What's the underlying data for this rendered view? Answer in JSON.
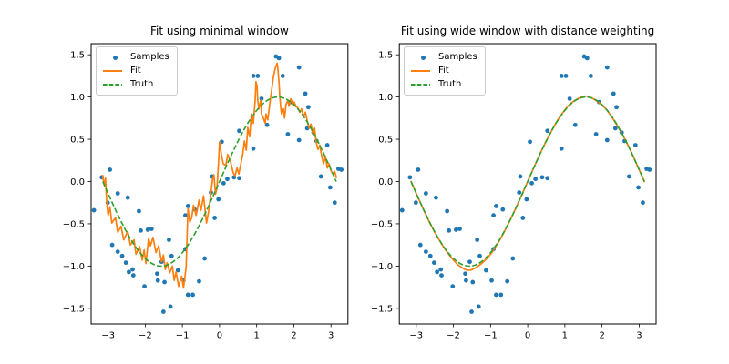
{
  "figure": {
    "background": "#ffffff"
  },
  "colors": {
    "samples": "#1f77b4",
    "fit": "#ff7f0e",
    "truth": "#2ca02c",
    "spine": "#000000",
    "tick_text": "#000000",
    "legend_border": "#cccccc"
  },
  "legend": {
    "position": "upper left",
    "items": [
      {
        "label": "Samples",
        "glyph": "dot-marker"
      },
      {
        "label": "Fit",
        "glyph": "solid-line"
      },
      {
        "label": "Truth",
        "glyph": "dashed-line"
      }
    ]
  },
  "chart_data": {
    "type": "scatter",
    "grid": false,
    "shared": {
      "xlim": [
        -3.456,
        3.456
      ],
      "ylim": [
        -1.685,
        1.631
      ],
      "xticks": [
        {
          "v": -3,
          "label": "−3"
        },
        {
          "v": -2,
          "label": "−2"
        },
        {
          "v": -1,
          "label": "−1"
        },
        {
          "v": 0,
          "label": "0"
        },
        {
          "v": 1,
          "label": "1"
        },
        {
          "v": 2,
          "label": "2"
        },
        {
          "v": 3,
          "label": "3"
        }
      ],
      "yticks": [
        {
          "v": -1.5,
          "label": "−1.5"
        },
        {
          "v": -1.0,
          "label": "−1.0"
        },
        {
          "v": -0.5,
          "label": "−0.5"
        },
        {
          "v": 0.0,
          "label": "0.0"
        },
        {
          "v": 0.5,
          "label": "0.5"
        },
        {
          "v": 1.0,
          "label": "1.0"
        },
        {
          "v": 1.5,
          "label": "1.5"
        }
      ],
      "samples_label": "Samples",
      "samples": [
        [
          -3.38,
          -0.34
        ],
        [
          -3.17,
          0.05
        ],
        [
          -3.01,
          -0.25
        ],
        [
          -2.95,
          0.14
        ],
        [
          -2.89,
          -0.75
        ],
        [
          -2.74,
          -0.14
        ],
        [
          -2.74,
          -0.83
        ],
        [
          -2.62,
          -0.88
        ],
        [
          -2.52,
          -0.96
        ],
        [
          -2.47,
          -0.19
        ],
        [
          -2.44,
          -1.07
        ],
        [
          -2.34,
          -1.04
        ],
        [
          -2.32,
          -1.11
        ],
        [
          -2.17,
          -0.35
        ],
        [
          -2.12,
          -0.58
        ],
        [
          -2.02,
          -1.24
        ],
        [
          -1.93,
          -0.57
        ],
        [
          -1.83,
          -0.56
        ],
        [
          -1.68,
          -1.09
        ],
        [
          -1.66,
          -1.17
        ],
        [
          -1.56,
          -0.95
        ],
        [
          -1.51,
          -1.54
        ],
        [
          -1.48,
          -1.19
        ],
        [
          -1.36,
          -0.69
        ],
        [
          -1.32,
          -1.48
        ],
        [
          -1.29,
          -0.88
        ],
        [
          -1.12,
          -1.05
        ],
        [
          -0.97,
          -1.17
        ],
        [
          -0.92,
          -0.8
        ],
        [
          -0.92,
          -0.4
        ],
        [
          -0.85,
          -1.34
        ],
        [
          -0.85,
          -0.29
        ],
        [
          -0.72,
          -1.34
        ],
        [
          -0.67,
          -0.33
        ],
        [
          -0.55,
          -1.18
        ],
        [
          -0.4,
          -0.91
        ],
        [
          -0.23,
          -0.13
        ],
        [
          -0.2,
          0.06
        ],
        [
          -0.13,
          -0.43
        ],
        [
          -0.03,
          -0.21
        ],
        [
          0.06,
          0.47
        ],
        [
          0.11,
          -0.02
        ],
        [
          0.21,
          0.03
        ],
        [
          0.39,
          0.05
        ],
        [
          0.53,
          0.04
        ],
        [
          0.53,
          0.6
        ],
        [
          0.91,
          0.39
        ],
        [
          0.91,
          1.25
        ],
        [
          1.03,
          1.25
        ],
        [
          1.13,
          0.98
        ],
        [
          1.28,
          0.67
        ],
        [
          1.52,
          1.48
        ],
        [
          1.6,
          1.46
        ],
        [
          1.7,
          1.25
        ],
        [
          1.84,
          0.56
        ],
        [
          1.92,
          0.94
        ],
        [
          2.14,
          1.35
        ],
        [
          2.14,
          0.49
        ],
        [
          2.31,
          1.04
        ],
        [
          2.36,
          0.63
        ],
        [
          2.39,
          0.88
        ],
        [
          2.53,
          0.58
        ],
        [
          2.61,
          0.48
        ],
        [
          2.73,
          0.06
        ],
        [
          2.9,
          0.43
        ],
        [
          2.98,
          -0.07
        ],
        [
          3.1,
          -0.25
        ],
        [
          3.2,
          0.15
        ],
        [
          3.28,
          0.14
        ]
      ],
      "truth": {
        "label": "Truth",
        "formula": "sin(x)",
        "amplitude": 1.0,
        "x_min": -3.1416,
        "x_max": 3.1416
      }
    },
    "subplots": [
      {
        "title": "Fit using minimal window",
        "fit": {
          "label": "Fit",
          "smooth": false,
          "points": [
            [
              -3.15,
              0.08
            ],
            [
              -3.1,
              -0.05
            ],
            [
              -3.07,
              0.04
            ],
            [
              -3.04,
              -0.22
            ],
            [
              -3.0,
              -0.4
            ],
            [
              -2.95,
              -0.3
            ],
            [
              -2.9,
              -0.49
            ],
            [
              -2.8,
              -0.43
            ],
            [
              -2.74,
              -0.6
            ],
            [
              -2.65,
              -0.53
            ],
            [
              -2.58,
              -0.69
            ],
            [
              -2.47,
              -0.59
            ],
            [
              -2.4,
              -0.75
            ],
            [
              -2.3,
              -0.69
            ],
            [
              -2.25,
              -0.86
            ],
            [
              -2.15,
              -0.77
            ],
            [
              -2.08,
              -0.93
            ],
            [
              -2.03,
              -0.81
            ],
            [
              -1.98,
              -0.97
            ],
            [
              -1.91,
              -0.67
            ],
            [
              -1.86,
              -0.76
            ],
            [
              -1.79,
              -0.66
            ],
            [
              -1.71,
              -0.84
            ],
            [
              -1.64,
              -0.76
            ],
            [
              -1.56,
              -0.95
            ],
            [
              -1.51,
              -0.87
            ],
            [
              -1.46,
              -1.04
            ],
            [
              -1.41,
              -0.96
            ],
            [
              -1.34,
              -1.08
            ],
            [
              -1.27,
              -1.0
            ],
            [
              -1.22,
              -1.17
            ],
            [
              -1.17,
              -1.07
            ],
            [
              -1.1,
              -1.24
            ],
            [
              -1.02,
              -1.12
            ],
            [
              -0.97,
              -1.26
            ],
            [
              -0.9,
              -1.02
            ],
            [
              -0.85,
              -0.32
            ],
            [
              -0.8,
              -0.48
            ],
            [
              -0.75,
              -0.43
            ],
            [
              -0.7,
              -0.28
            ],
            [
              -0.63,
              -0.4
            ],
            [
              -0.55,
              -0.22
            ],
            [
              -0.5,
              -0.34
            ],
            [
              -0.43,
              -0.17
            ],
            [
              -0.35,
              -0.49
            ],
            [
              -0.28,
              -0.32
            ],
            [
              -0.19,
              0.02
            ],
            [
              -0.15,
              0.08
            ],
            [
              -0.11,
              -0.15
            ],
            [
              -0.07,
              -0.08
            ],
            [
              -0.03,
              0.2
            ],
            [
              0.0,
              0.47
            ],
            [
              0.05,
              0.32
            ],
            [
              0.1,
              0.21
            ],
            [
              0.17,
              0.19
            ],
            [
              0.22,
              0.32
            ],
            [
              0.3,
              0.23
            ],
            [
              0.37,
              0.1
            ],
            [
              0.42,
              0.07
            ],
            [
              0.47,
              0.16
            ],
            [
              0.52,
              0.09
            ],
            [
              0.62,
              0.31
            ],
            [
              0.67,
              0.48
            ],
            [
              0.72,
              0.37
            ],
            [
              0.76,
              0.64
            ],
            [
              0.81,
              0.53
            ],
            [
              0.86,
              0.8
            ],
            [
              0.91,
              0.69
            ],
            [
              0.96,
              0.96
            ],
            [
              0.98,
              1.18
            ],
            [
              1.01,
              1.13
            ],
            [
              1.03,
              0.96
            ],
            [
              1.06,
              0.86
            ],
            [
              1.11,
              0.96
            ],
            [
              1.13,
              0.8
            ],
            [
              1.18,
              0.75
            ],
            [
              1.23,
              0.69
            ],
            [
              1.25,
              0.8
            ],
            [
              1.3,
              0.73
            ],
            [
              1.35,
              0.91
            ],
            [
              1.4,
              1.07
            ],
            [
              1.45,
              1.24
            ],
            [
              1.5,
              1.34
            ],
            [
              1.55,
              1.4
            ],
            [
              1.57,
              1.34
            ],
            [
              1.6,
              1.18
            ],
            [
              1.62,
              1.02
            ],
            [
              1.65,
              0.86
            ],
            [
              1.67,
              0.8
            ],
            [
              1.72,
              0.86
            ],
            [
              1.75,
              0.75
            ],
            [
              1.79,
              0.91
            ],
            [
              1.84,
              0.96
            ],
            [
              1.87,
              0.89
            ],
            [
              1.92,
              0.98
            ],
            [
              1.97,
              0.91
            ],
            [
              2.01,
              0.94
            ],
            [
              2.06,
              0.89
            ],
            [
              2.11,
              0.87
            ],
            [
              2.16,
              0.82
            ],
            [
              2.21,
              0.86
            ],
            [
              2.26,
              0.77
            ],
            [
              2.31,
              0.82
            ],
            [
              2.36,
              0.72
            ],
            [
              2.41,
              0.63
            ],
            [
              2.46,
              0.68
            ],
            [
              2.51,
              0.56
            ],
            [
              2.56,
              0.63
            ],
            [
              2.6,
              0.47
            ],
            [
              2.65,
              0.38
            ],
            [
              2.7,
              0.43
            ],
            [
              2.75,
              0.3
            ],
            [
              2.8,
              0.21
            ],
            [
              2.85,
              0.3
            ],
            [
              2.9,
              0.16
            ],
            [
              2.95,
              0.21
            ],
            [
              3.0,
              0.13
            ],
            [
              3.05,
              0.09
            ],
            [
              3.1,
              0.12
            ],
            [
              3.15,
              0.04
            ]
          ]
        }
      },
      {
        "title": "Fit using wide window with distance weighting",
        "fit": {
          "label": "Fit",
          "smooth": true,
          "points": [
            [
              -3.14,
              0.0
            ],
            [
              -2.9,
              -0.24
            ],
            [
              -2.6,
              -0.52
            ],
            [
              -2.3,
              -0.75
            ],
            [
              -2.0,
              -0.93
            ],
            [
              -1.8,
              -1.01
            ],
            [
              -1.57,
              -1.05
            ],
            [
              -1.3,
              -0.99
            ],
            [
              -1.0,
              -0.86
            ],
            [
              -0.7,
              -0.65
            ],
            [
              -0.4,
              -0.39
            ],
            [
              -0.1,
              -0.1
            ],
            [
              0.2,
              0.2
            ],
            [
              0.5,
              0.48
            ],
            [
              0.8,
              0.72
            ],
            [
              1.1,
              0.9
            ],
            [
              1.35,
              0.98
            ],
            [
              1.57,
              1.01
            ],
            [
              1.8,
              0.97
            ],
            [
              2.1,
              0.86
            ],
            [
              2.4,
              0.67
            ],
            [
              2.7,
              0.43
            ],
            [
              3.0,
              0.14
            ],
            [
              3.14,
              0.0
            ]
          ]
        }
      }
    ]
  }
}
